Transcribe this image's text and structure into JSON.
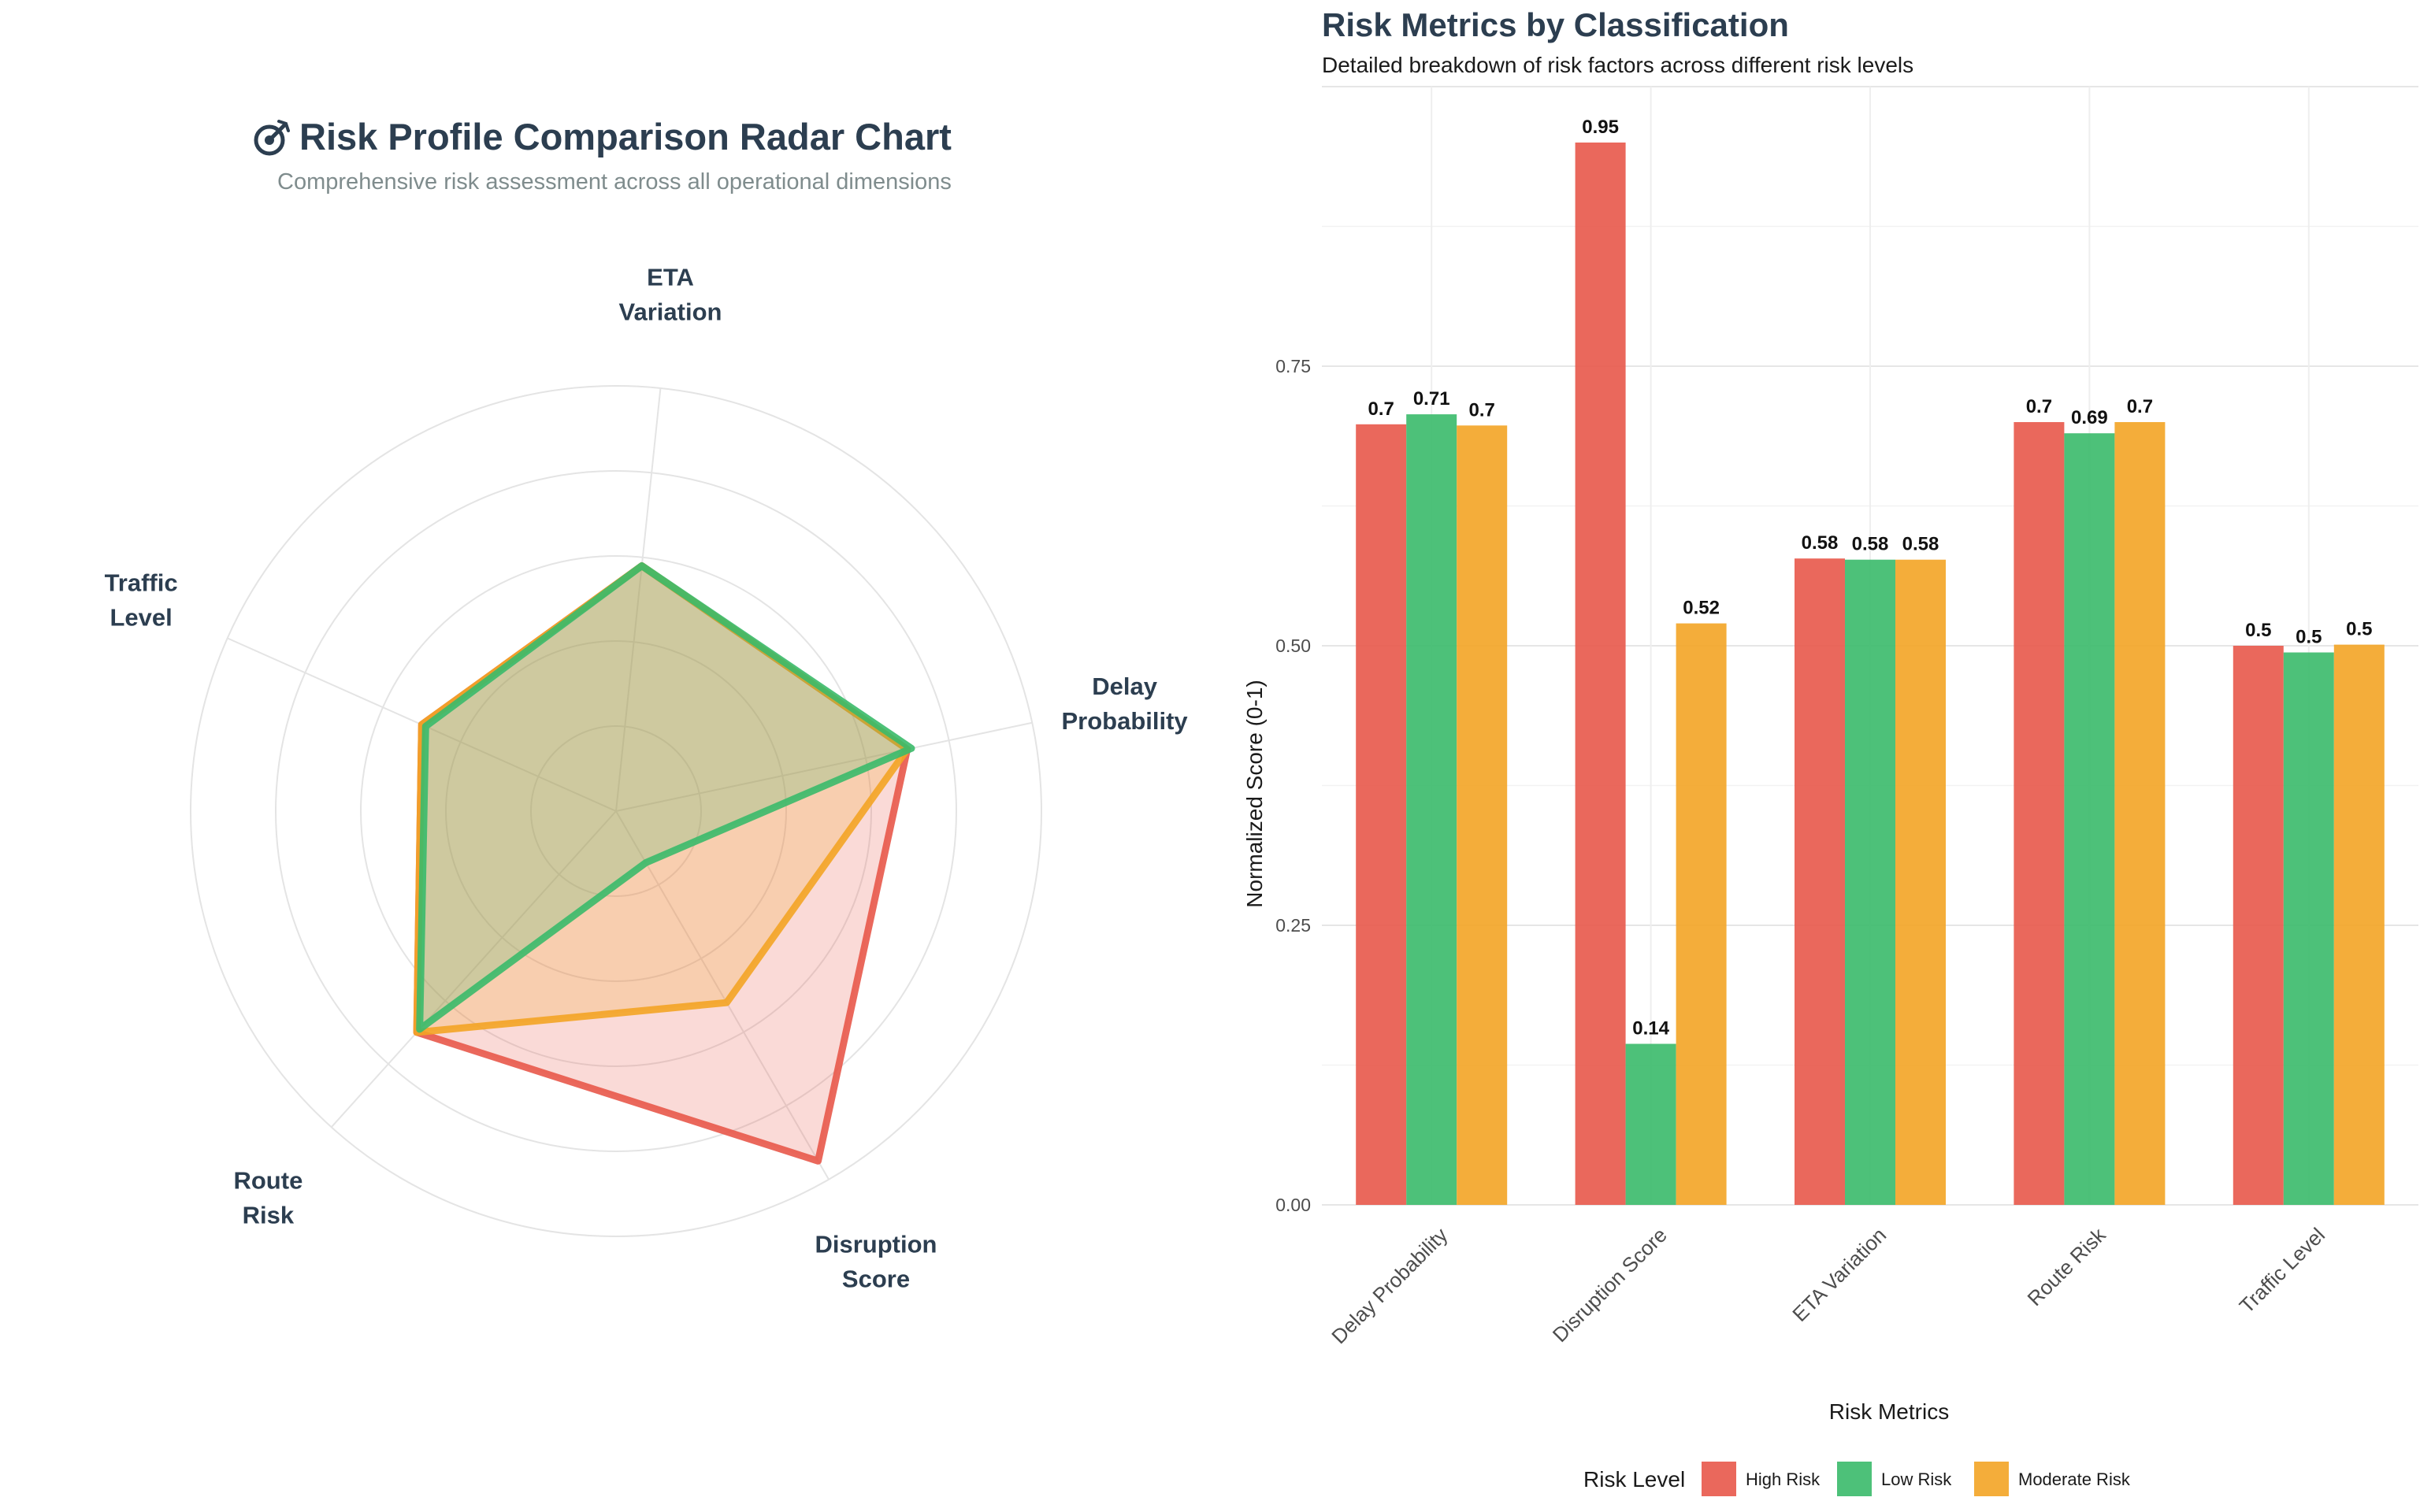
{
  "colors": {
    "high": "#e8584a",
    "low": "#3aba6a",
    "moderate": "#f3a425",
    "title": "#2c3e50",
    "subtitle": "#7f8c8d",
    "grid": "#e4e4e4",
    "axis_text": "#4d4d4d"
  },
  "chart_data": [
    {
      "type": "radar",
      "title_icon": "target-icon",
      "title": "Risk Profile Comparison Radar Chart",
      "subtitle": "Comprehensive risk assessment across all operational dimensions",
      "axes": [
        {
          "label_lines": [
            "Delay",
            "Probability"
          ]
        },
        {
          "label_lines": [
            "Disruption",
            "Score"
          ]
        },
        {
          "label_lines": [
            "Route",
            "Risk"
          ]
        },
        {
          "label_lines": [
            "Traffic",
            "Level"
          ]
        },
        {
          "label_lines": [
            "ETA",
            "Variation"
          ]
        }
      ],
      "range": [
        0,
        1
      ],
      "rings": 5,
      "series": [
        {
          "name": "High Risk",
          "color_key": "high",
          "values": [
            0.7,
            0.95,
            0.7,
            0.5,
            0.58
          ]
        },
        {
          "name": "Moderate Risk",
          "color_key": "moderate",
          "values": [
            0.7,
            0.52,
            0.7,
            0.5,
            0.58
          ]
        },
        {
          "name": "Low Risk",
          "color_key": "low",
          "values": [
            0.71,
            0.14,
            0.69,
            0.49,
            0.58
          ]
        }
      ]
    },
    {
      "type": "bar",
      "title": "Risk Metrics by Classification",
      "subtitle": "Detailed breakdown of risk factors across different risk levels",
      "xlabel": "Risk Metrics",
      "ylabel": "Normalized Score (0-1)",
      "ylim": [
        0,
        1
      ],
      "yticks": [
        0,
        0.25,
        0.5,
        0.75
      ],
      "ytick_labels": [
        "0.00",
        "0.25",
        "0.50",
        "0.75"
      ],
      "categories": [
        "Delay Probability",
        "Disruption Score",
        "ETA Variation",
        "Route Risk",
        "Traffic Level"
      ],
      "series": [
        {
          "name": "High Risk",
          "color_key": "high",
          "values": [
            0.698,
            0.95,
            0.578,
            0.7,
            0.5
          ],
          "labels": [
            "0.7",
            "0.95",
            "0.58",
            "0.7",
            "0.5"
          ]
        },
        {
          "name": "Low Risk",
          "color_key": "low",
          "values": [
            0.707,
            0.144,
            0.577,
            0.69,
            0.494
          ],
          "labels": [
            "0.71",
            "0.14",
            "0.58",
            "0.69",
            "0.5"
          ]
        },
        {
          "name": "Moderate Risk",
          "color_key": "moderate",
          "values": [
            0.697,
            0.52,
            0.577,
            0.7,
            0.501
          ],
          "labels": [
            "0.7",
            "0.52",
            "0.58",
            "0.7",
            "0.5"
          ]
        }
      ],
      "legend": {
        "title": "Risk Level",
        "position": "bottom"
      },
      "grid": true
    }
  ]
}
